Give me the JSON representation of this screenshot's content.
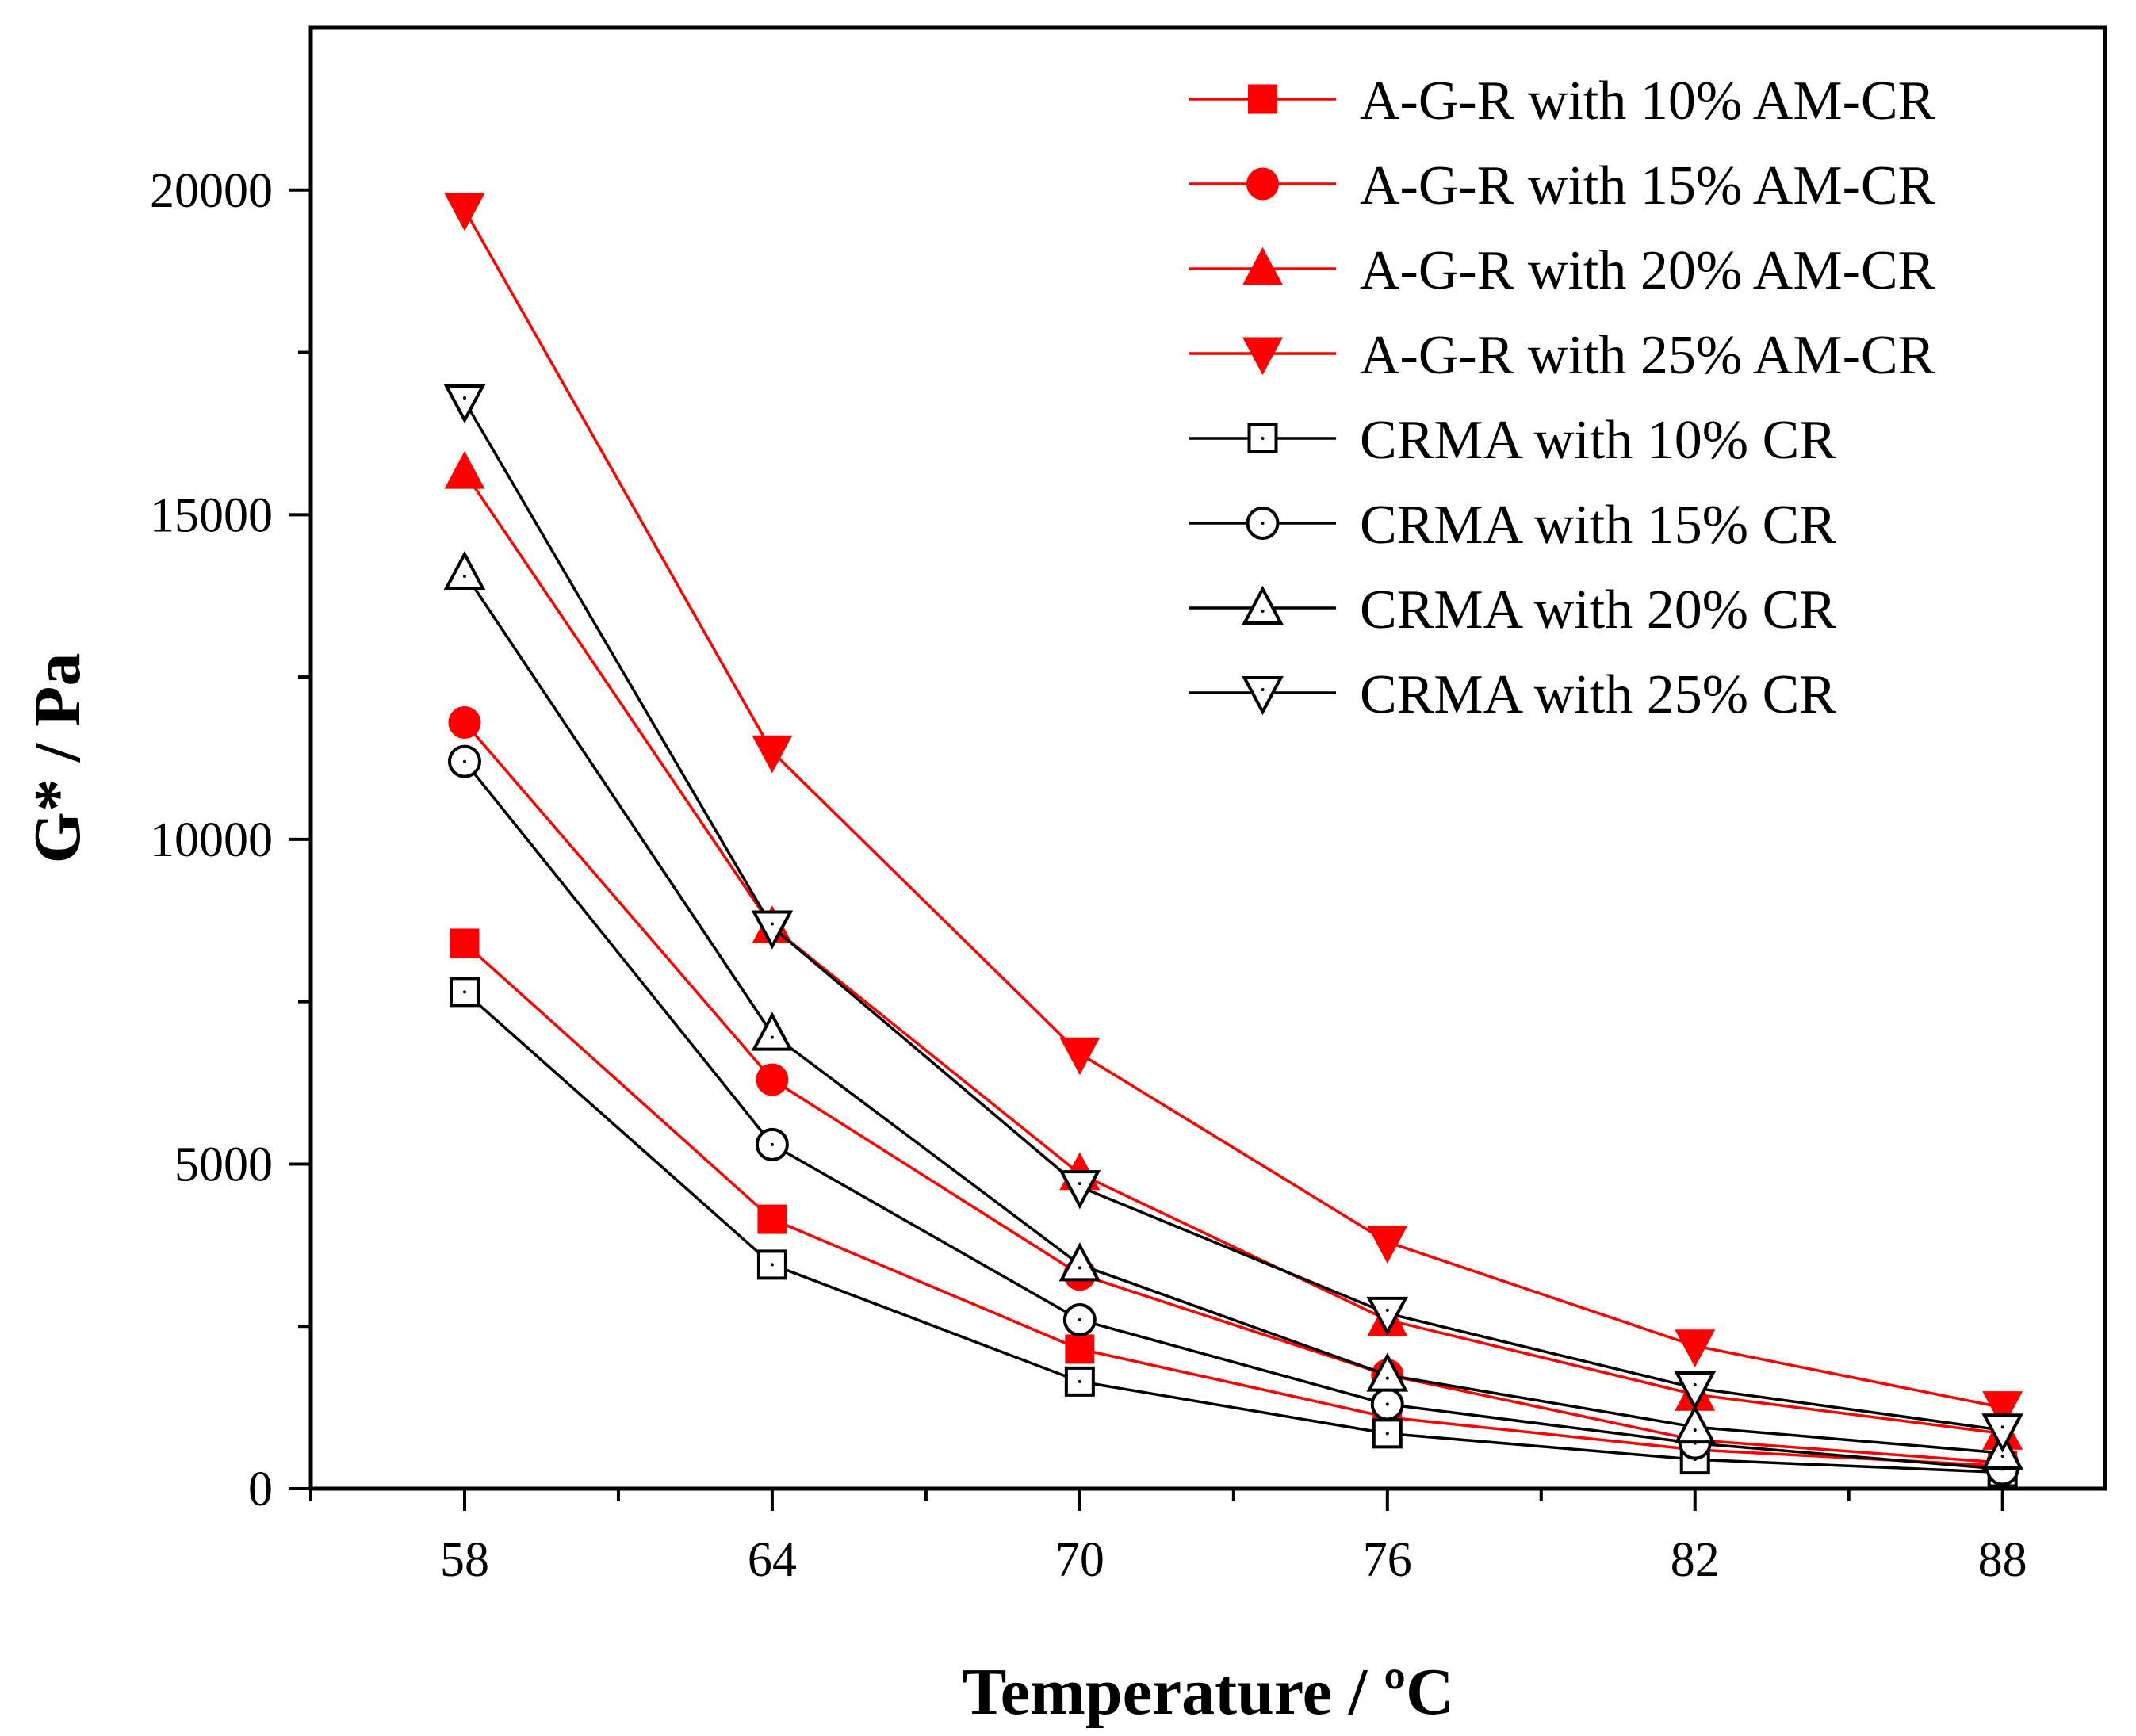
{
  "chart_data": {
    "type": "line",
    "xlabel": "Temperature  / ºC",
    "ylabel": "G* / Pa",
    "x": [
      58,
      64,
      70,
      76,
      82,
      88
    ],
    "xticks": [
      "58",
      "64",
      "70",
      "76",
      "82",
      "88"
    ],
    "xlim": [
      55,
      90
    ],
    "ylim": [
      0,
      22500
    ],
    "yticks": [
      0,
      5000,
      10000,
      15000,
      20000
    ],
    "ytick_labels": [
      "0",
      "5000",
      "10000",
      "15000",
      "20000"
    ],
    "grid": false,
    "legend_position": "top-right",
    "series": [
      {
        "name": "A-G-R with 10%  AM-CR",
        "color": "#ff0000",
        "marker": "square-filled",
        "values": [
          8400,
          4150,
          2150,
          1100,
          600,
          350
        ]
      },
      {
        "name": "A-G-R with 15%  AM-CR",
        "color": "#ff0000",
        "marker": "circle-filled",
        "values": [
          11800,
          6300,
          3300,
          1750,
          750,
          400
        ]
      },
      {
        "name": "A-G-R with 20%  AM-CR",
        "color": "#ff0000",
        "marker": "triangle-up-filled",
        "values": [
          15650,
          8650,
          4850,
          2600,
          1450,
          850
        ]
      },
      {
        "name": "A-G-R with 25%  AM-CR",
        "color": "#ff0000",
        "marker": "triangle-down-filled",
        "values": [
          19700,
          11350,
          6700,
          3800,
          2200,
          1250
        ]
      },
      {
        "name": "CRMA with 10% CR",
        "color": "#000000",
        "marker": "square-open",
        "values": [
          7650,
          3450,
          1650,
          850,
          450,
          250
        ]
      },
      {
        "name": "CRMA with 15% CR",
        "color": "#000000",
        "marker": "circle-open",
        "values": [
          11200,
          5300,
          2600,
          1300,
          700,
          300
        ]
      },
      {
        "name": "CRMA with 20% CR",
        "color": "#000000",
        "marker": "triangle-up-open",
        "values": [
          14100,
          7000,
          3450,
          1750,
          950,
          550
        ]
      },
      {
        "name": "CRMA with 25% CR",
        "color": "#000000",
        "marker": "triangle-down-open",
        "values": [
          16750,
          8650,
          4650,
          2700,
          1550,
          900
        ]
      }
    ]
  }
}
